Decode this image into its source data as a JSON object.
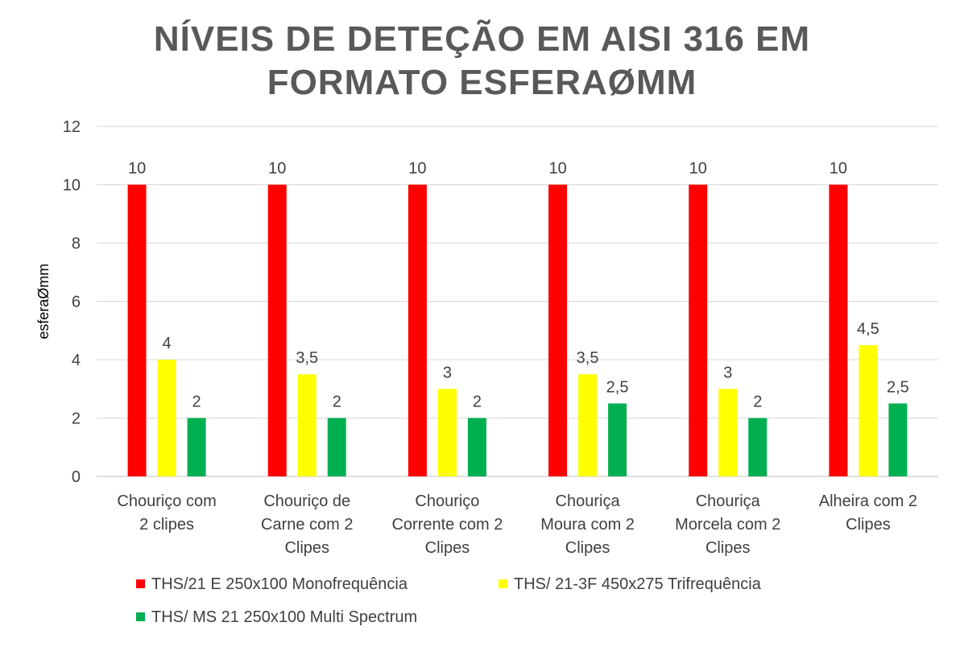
{
  "chart_data": {
    "type": "bar",
    "title": [
      "NÍVEIS DE DETEÇÃO EM AISI 316 EM",
      "FORMATO ESFERAØMM"
    ],
    "ylabel": "esferaØmm",
    "xlabel": "",
    "ylim": [
      0,
      12
    ],
    "yticks": [
      "0",
      "2",
      "4",
      "6",
      "8",
      "10",
      "12"
    ],
    "grid": true,
    "legend_position": "bottom",
    "categories": [
      [
        "Chouriço com",
        "2 clipes"
      ],
      [
        "Chouriço de",
        "Carne com 2",
        "Clipes"
      ],
      [
        "Chouriço",
        "Corrente com 2",
        "Clipes"
      ],
      [
        "Chouriça",
        "Moura com 2",
        "Clipes"
      ],
      [
        "Chouriça",
        "Morcela com 2",
        "Clipes"
      ],
      [
        "Alheira com 2",
        "Clipes"
      ]
    ],
    "series": [
      {
        "name": "THS/21 E 250x100 Monofrequência",
        "color": "#ff0000",
        "values": [
          10,
          10,
          10,
          10,
          10,
          10
        ],
        "labels": [
          "10",
          "10",
          "10",
          "10",
          "10",
          "10"
        ]
      },
      {
        "name": "THS/ 21-3F 450x275 Trifrequência",
        "color": "#ffff00",
        "values": [
          4,
          3.5,
          3,
          3.5,
          3,
          4.5
        ],
        "labels": [
          "4",
          "3,5",
          "3",
          "3,5",
          "3",
          "4,5"
        ]
      },
      {
        "name": "THS/ MS 21 250x100 Multi Spectrum",
        "color": "#00b050",
        "values": [
          2,
          2,
          2,
          2.5,
          2,
          2.5
        ],
        "labels": [
          "2",
          "2",
          "2",
          "2,5",
          "2",
          "2,5"
        ]
      }
    ]
  }
}
